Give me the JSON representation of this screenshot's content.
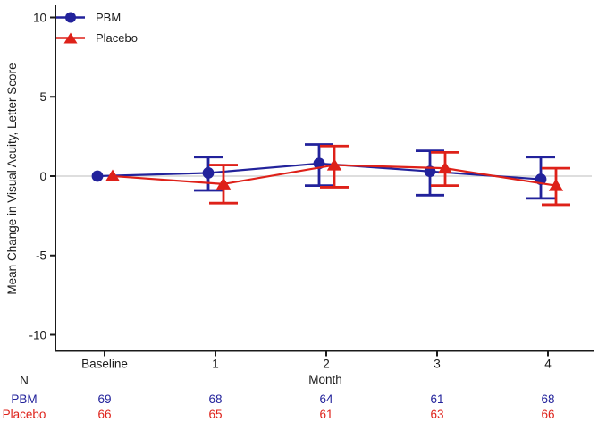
{
  "chart_data": {
    "type": "line",
    "title": "",
    "xlabel": "Month",
    "ylabel": "Mean Change in Visual Acuity, Letter Score",
    "x_categories": [
      "Baseline",
      "1",
      "2",
      "3",
      "4"
    ],
    "ytick_values": [
      10,
      5,
      0,
      -5,
      -10
    ],
    "ytick_labels": [
      "10",
      "5",
      "0",
      "-5",
      "-10"
    ],
    "ylim": [
      -10.5,
      10.5
    ],
    "zero_reference_line": 0,
    "grid": "zero-line-only",
    "legend_position": "top-left",
    "series": [
      {
        "name": "PBM",
        "marker": "circle",
        "color": "#22229B",
        "values": [
          0,
          0.2,
          0.8,
          0.3,
          -0.2
        ],
        "ci_low": [
          null,
          -0.9,
          -0.6,
          -1.2,
          -1.4
        ],
        "ci_high": [
          null,
          1.2,
          2.0,
          1.6,
          1.2
        ]
      },
      {
        "name": "Placebo",
        "marker": "triangle",
        "color": "#DE2119",
        "values": [
          0,
          -0.5,
          0.7,
          0.5,
          -0.6
        ],
        "ci_low": [
          null,
          -1.7,
          -0.7,
          -0.6,
          -1.8
        ],
        "ci_high": [
          null,
          0.7,
          1.9,
          1.5,
          0.5
        ]
      }
    ],
    "n_table": {
      "header": "N",
      "rows": [
        {
          "label": "PBM",
          "color": "#22229B",
          "values": [
            "69",
            "68",
            "64",
            "61",
            "68"
          ]
        },
        {
          "label": "Placebo",
          "color": "#DE2119",
          "values": [
            "66",
            "65",
            "61",
            "63",
            "66"
          ]
        }
      ]
    }
  },
  "colors": {
    "axis": "#1a1a1a",
    "tick_text": "#1a1a1a",
    "zero_line": "#cbcbcb",
    "background": "#ffffff"
  }
}
